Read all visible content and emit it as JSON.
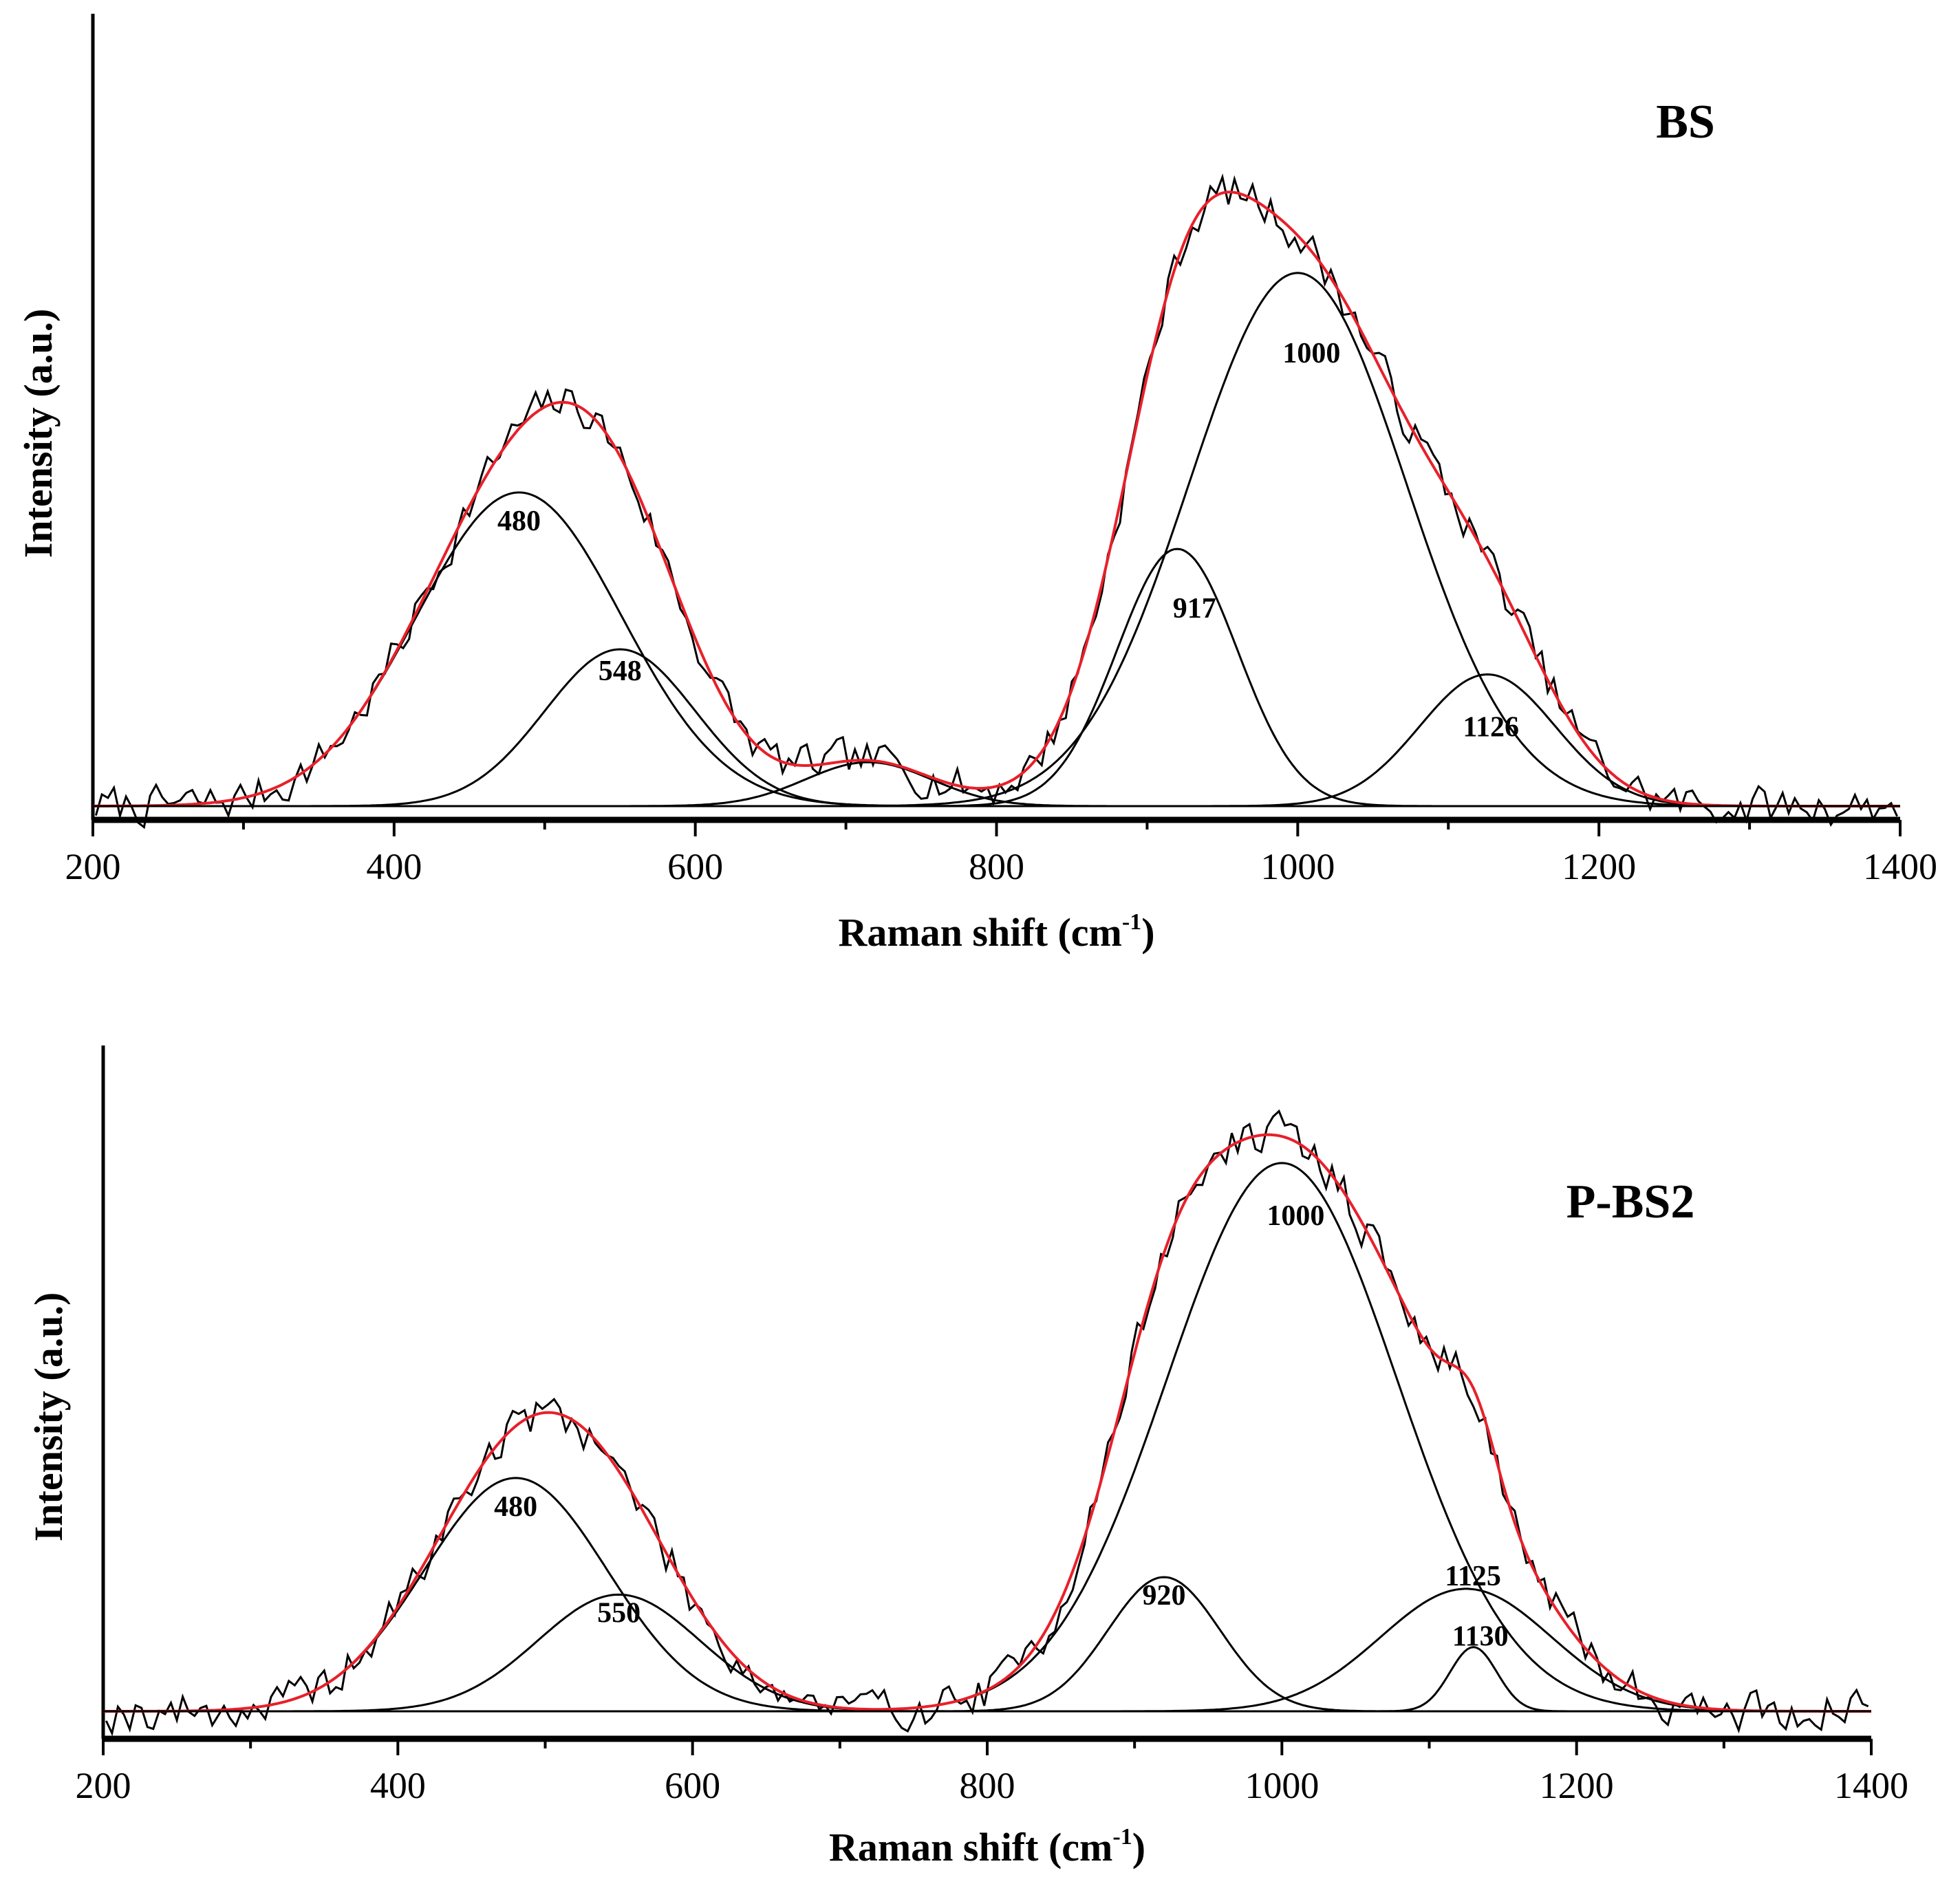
{
  "chart_data": [
    {
      "type": "line",
      "title": "BS",
      "xlabel": "Raman shift (cm",
      "xlabel_sup": "-1",
      "xlabel_end": ")",
      "ylabel": "Intensity (a.u.)",
      "xlim": [
        200,
        1400
      ],
      "ylim": [
        0,
        1.0
      ],
      "xticks": [
        "200",
        "400",
        "600",
        "800",
        "1000",
        "1200",
        "1400"
      ],
      "colors": {
        "raw": "#000000",
        "fit": "#e8202a",
        "components": "#000000"
      },
      "peaks": [
        {
          "label": "480",
          "center": 483,
          "amplitude": 0.5,
          "sigma": 68
        },
        {
          "label": "548",
          "center": 550,
          "amplitude": 0.25,
          "sigma": 50
        },
        {
          "label": "",
          "center": 715,
          "amplitude": 0.07,
          "sigma": 42
        },
        {
          "label": "917",
          "center": 920,
          "amplitude": 0.41,
          "sigma": 40
        },
        {
          "label": "1000",
          "center": 1000,
          "amplitude": 0.85,
          "sigma": 72
        },
        {
          "label": "1126",
          "center": 1126,
          "amplitude": 0.21,
          "sigma": 45
        }
      ],
      "noise": {
        "seed": 7,
        "amplitude": 0.018
      }
    },
    {
      "type": "line",
      "title": "P-BS2",
      "xlabel": "Raman shift (cm",
      "xlabel_sup": "-1",
      "xlabel_end": ")",
      "ylabel": "Intensity (a.u.)",
      "xlim": [
        200,
        1400
      ],
      "ylim": [
        0,
        1.0
      ],
      "xticks": [
        "200",
        "400",
        "600",
        "800",
        "1000",
        "1200",
        "1400"
      ],
      "colors": {
        "raw": "#000000",
        "fit": "#e8202a",
        "components": "#000000"
      },
      "peaks": [
        {
          "label": "480",
          "center": 480,
          "amplitude": 0.4,
          "sigma": 62
        },
        {
          "label": "550",
          "center": 550,
          "amplitude": 0.2,
          "sigma": 55
        },
        {
          "label": "920",
          "center": 920,
          "amplitude": 0.23,
          "sigma": 38
        },
        {
          "label": "1000",
          "center": 1000,
          "amplitude": 0.94,
          "sigma": 78
        },
        {
          "label": "1125",
          "center": 1125,
          "amplitude": 0.21,
          "sigma": 58
        },
        {
          "label": "1130",
          "center": 1130,
          "amplitude": 0.11,
          "sigma": 16
        }
      ],
      "noise": {
        "seed": 19,
        "amplitude": 0.02
      }
    }
  ]
}
